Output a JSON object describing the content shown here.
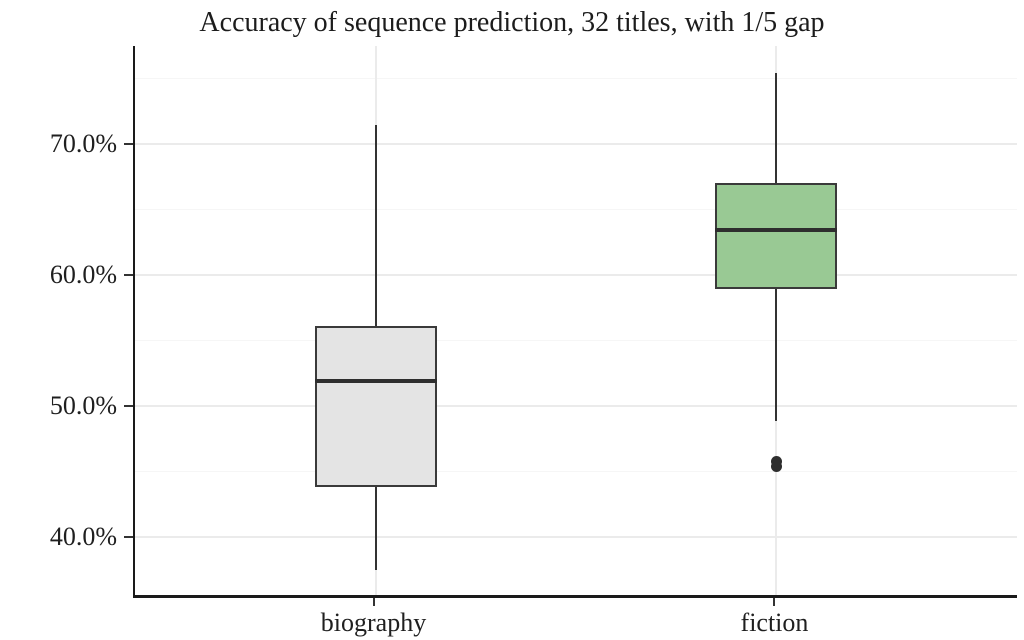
{
  "chart_data": {
    "type": "boxplot",
    "title": "Accuracy of sequence prediction, 32 titles, with 1/5 gap",
    "xlabel": "",
    "ylabel": "",
    "categories": [
      "biography",
      "fiction"
    ],
    "series": [
      {
        "name": "biography",
        "whisker_low": 37.5,
        "q1": 43.8,
        "median": 51.9,
        "q3": 56.1,
        "whisker_high": 71.4,
        "outliers": [],
        "fill": "#e4e4e4"
      },
      {
        "name": "fiction",
        "whisker_low": 48.9,
        "q1": 58.9,
        "median": 63.4,
        "q3": 67.0,
        "whisker_high": 75.4,
        "outliers": [
          45.4,
          45.8
        ],
        "fill": "#99c994"
      }
    ],
    "ylim": [
      35.6,
      77.45
    ],
    "y_major_ticks": [
      40,
      50,
      60,
      70
    ],
    "y_minor_ticks": [
      45,
      55,
      65,
      75
    ],
    "y_tick_labels": [
      "40.0%",
      "50.0%",
      "60.0%",
      "70.0%"
    ],
    "grid": {
      "horizontal_major": true,
      "horizontal_minor": true,
      "vertical_major_at_categories": true
    },
    "legend": "none"
  },
  "colors": {
    "box_border": "#3a3a3a",
    "median_line": "#2e2e2e",
    "whisker": "#333333",
    "outlier": "#2e2e2e",
    "grid_major": "#ebebeb",
    "grid_minor": "#f6f6f6",
    "axis_line": "#1a1a1a",
    "tick_mark": "#333333",
    "text": "#1f1f1f"
  }
}
